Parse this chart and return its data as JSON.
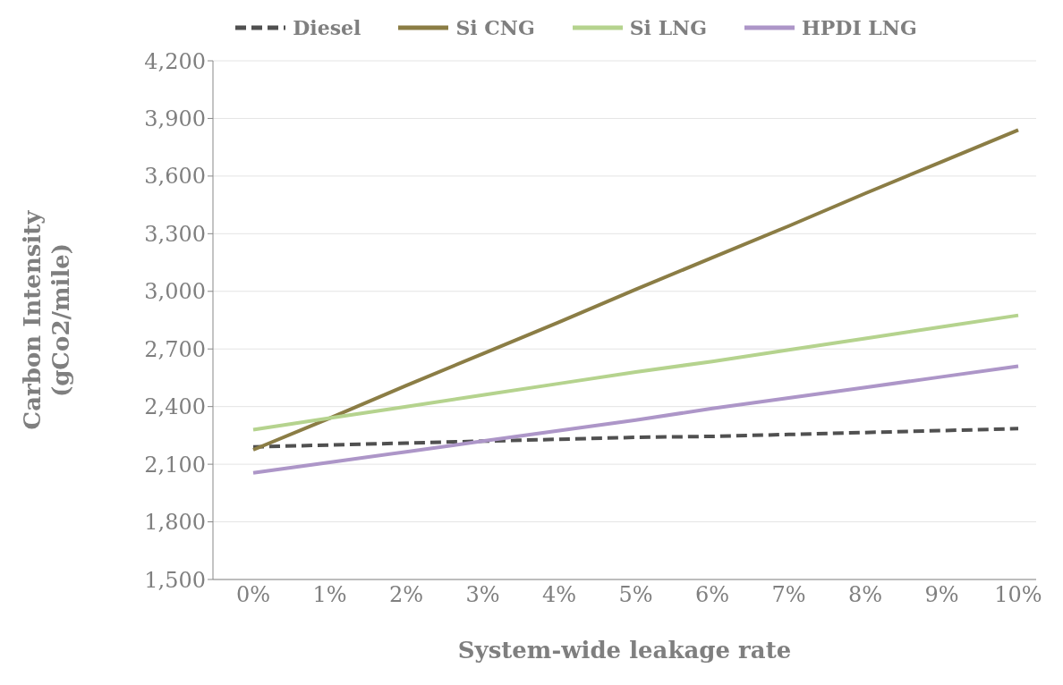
{
  "chart_data": {
    "type": "line",
    "xlabel": "System-wide leakage rate",
    "ylabel": "Carbon Intensity (gCo2/mile)",
    "categories": [
      "0%",
      "1%",
      "2%",
      "3%",
      "4%",
      "5%",
      "6%",
      "7%",
      "8%",
      "9%",
      "10%"
    ],
    "series": [
      {
        "name": "Diesel",
        "color": "#505050",
        "line_style": "dashed",
        "values": [
          2190,
          2200,
          2210,
          2220,
          2230,
          2240,
          2245,
          2255,
          2265,
          2275,
          2285
        ]
      },
      {
        "name": "Si CNG",
        "color": "#8b7d45",
        "values": [
          2175,
          2340,
          2510,
          2675,
          2840,
          3010,
          3175,
          3340,
          3510,
          3675,
          3840
        ]
      },
      {
        "name": "Si LNG",
        "color": "#b5d38e",
        "values": [
          2280,
          2340,
          2400,
          2460,
          2520,
          2580,
          2635,
          2695,
          2755,
          2815,
          2875
        ]
      },
      {
        "name": "HPDI LNG",
        "color": "#ad96c8",
        "values": [
          2055,
          2110,
          2165,
          2220,
          2275,
          2330,
          2390,
          2445,
          2500,
          2555,
          2610
        ]
      }
    ],
    "ylim": [
      1500,
      4200
    ],
    "yticks": [
      {
        "value": 1500,
        "label": "1,500"
      },
      {
        "value": 1800,
        "label": "1,800"
      },
      {
        "value": 2100,
        "label": "2,100"
      },
      {
        "value": 2400,
        "label": "2,400"
      },
      {
        "value": 2700,
        "label": "2,700"
      },
      {
        "value": 3000,
        "label": "3,000"
      },
      {
        "value": 3300,
        "label": "3,300"
      },
      {
        "value": 3600,
        "label": "3,600"
      },
      {
        "value": 3900,
        "label": "3,900"
      },
      {
        "value": 4200,
        "label": "4,200"
      }
    ],
    "grid": "y",
    "legend": "top",
    "marker": "none",
    "line_style": "solid"
  }
}
